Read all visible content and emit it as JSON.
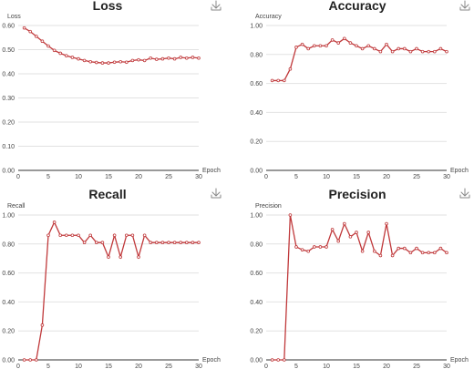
{
  "chart_data": [
    {
      "type": "line",
      "title": "Loss",
      "ylabel": "Loss",
      "xlabel": "Epoch",
      "xlim": [
        0,
        30
      ],
      "ylim": [
        0,
        0.6
      ],
      "xticks": [
        0,
        5,
        10,
        15,
        20,
        25,
        30
      ],
      "yticks": [
        0,
        0.1,
        0.2,
        0.3,
        0.4,
        0.5,
        0.6
      ],
      "ytick_labels": [
        "0.00",
        "0.10",
        "0.20",
        "0.30",
        "0.40",
        "0.50",
        "0.60"
      ],
      "series": [
        {
          "x": [
            1,
            2,
            3,
            4,
            5,
            6,
            7,
            8,
            9,
            10,
            11,
            12,
            13,
            14,
            15,
            16,
            17,
            18,
            19,
            20,
            21,
            22,
            23,
            24,
            25,
            26,
            27,
            28,
            29,
            30
          ],
          "values": [
            0.59,
            0.575,
            0.555,
            0.535,
            0.515,
            0.497,
            0.485,
            0.475,
            0.468,
            0.462,
            0.455,
            0.45,
            0.447,
            0.445,
            0.445,
            0.448,
            0.45,
            0.448,
            0.455,
            0.458,
            0.455,
            0.465,
            0.46,
            0.462,
            0.465,
            0.462,
            0.468,
            0.465,
            0.468,
            0.465
          ]
        }
      ],
      "grid": true
    },
    {
      "type": "line",
      "title": "Accuracy",
      "ylabel": "Accuracy",
      "xlabel": "Epoch",
      "xlim": [
        0,
        30
      ],
      "ylim": [
        0,
        1
      ],
      "xticks": [
        0,
        5,
        10,
        15,
        20,
        25,
        30
      ],
      "yticks": [
        0,
        0.2,
        0.4,
        0.6,
        0.8,
        1.0
      ],
      "ytick_labels": [
        "0.00",
        "0.20",
        "0.40",
        "0.60",
        "0.80",
        "1.00"
      ],
      "series": [
        {
          "x": [
            1,
            2,
            3,
            4,
            5,
            6,
            7,
            8,
            9,
            10,
            11,
            12,
            13,
            14,
            15,
            16,
            17,
            18,
            19,
            20,
            21,
            22,
            23,
            24,
            25,
            26,
            27,
            28,
            29,
            30
          ],
          "values": [
            0.62,
            0.62,
            0.62,
            0.7,
            0.85,
            0.87,
            0.84,
            0.86,
            0.86,
            0.86,
            0.9,
            0.88,
            0.91,
            0.88,
            0.86,
            0.84,
            0.86,
            0.84,
            0.82,
            0.87,
            0.82,
            0.84,
            0.84,
            0.82,
            0.84,
            0.82,
            0.82,
            0.82,
            0.84,
            0.82
          ]
        }
      ],
      "grid": true
    },
    {
      "type": "line",
      "title": "Recall",
      "ylabel": "Recall",
      "xlabel": "Epoch",
      "xlim": [
        0,
        30
      ],
      "ylim": [
        0,
        1
      ],
      "xticks": [
        0,
        5,
        10,
        15,
        20,
        25,
        30
      ],
      "yticks": [
        0,
        0.2,
        0.4,
        0.6,
        0.8,
        1.0
      ],
      "ytick_labels": [
        "0.00",
        "0.20",
        "0.40",
        "0.60",
        "0.80",
        "1.00"
      ],
      "series": [
        {
          "x": [
            1,
            2,
            3,
            4,
            5,
            6,
            7,
            8,
            9,
            10,
            11,
            12,
            13,
            14,
            15,
            16,
            17,
            18,
            19,
            20,
            21,
            22,
            23,
            24,
            25,
            26,
            27,
            28,
            29,
            30
          ],
          "values": [
            0,
            0,
            0,
            0.24,
            0.86,
            0.95,
            0.86,
            0.86,
            0.86,
            0.86,
            0.81,
            0.86,
            0.81,
            0.81,
            0.71,
            0.86,
            0.71,
            0.86,
            0.86,
            0.71,
            0.86,
            0.81,
            0.81,
            0.81,
            0.81,
            0.81,
            0.81,
            0.81,
            0.81,
            0.81
          ]
        }
      ],
      "grid": true
    },
    {
      "type": "line",
      "title": "Precision",
      "ylabel": "Precision",
      "xlabel": "Epoch",
      "xlim": [
        0,
        30
      ],
      "ylim": [
        0,
        1
      ],
      "xticks": [
        0,
        5,
        10,
        15,
        20,
        25,
        30
      ],
      "yticks": [
        0,
        0.2,
        0.4,
        0.6,
        0.8,
        1.0
      ],
      "ytick_labels": [
        "0.00",
        "0.20",
        "0.40",
        "0.60",
        "0.80",
        "1.00"
      ],
      "series": [
        {
          "x": [
            1,
            2,
            3,
            4,
            5,
            6,
            7,
            8,
            9,
            10,
            11,
            12,
            13,
            14,
            15,
            16,
            17,
            18,
            19,
            20,
            21,
            22,
            23,
            24,
            25,
            26,
            27,
            28,
            29,
            30
          ],
          "values": [
            0,
            0,
            0,
            1.0,
            0.78,
            0.76,
            0.75,
            0.78,
            0.78,
            0.78,
            0.9,
            0.82,
            0.94,
            0.85,
            0.88,
            0.75,
            0.88,
            0.75,
            0.72,
            0.94,
            0.72,
            0.77,
            0.77,
            0.74,
            0.77,
            0.74,
            0.74,
            0.74,
            0.77,
            0.74
          ]
        }
      ],
      "grid": true
    }
  ],
  "download_icon": "download-icon"
}
